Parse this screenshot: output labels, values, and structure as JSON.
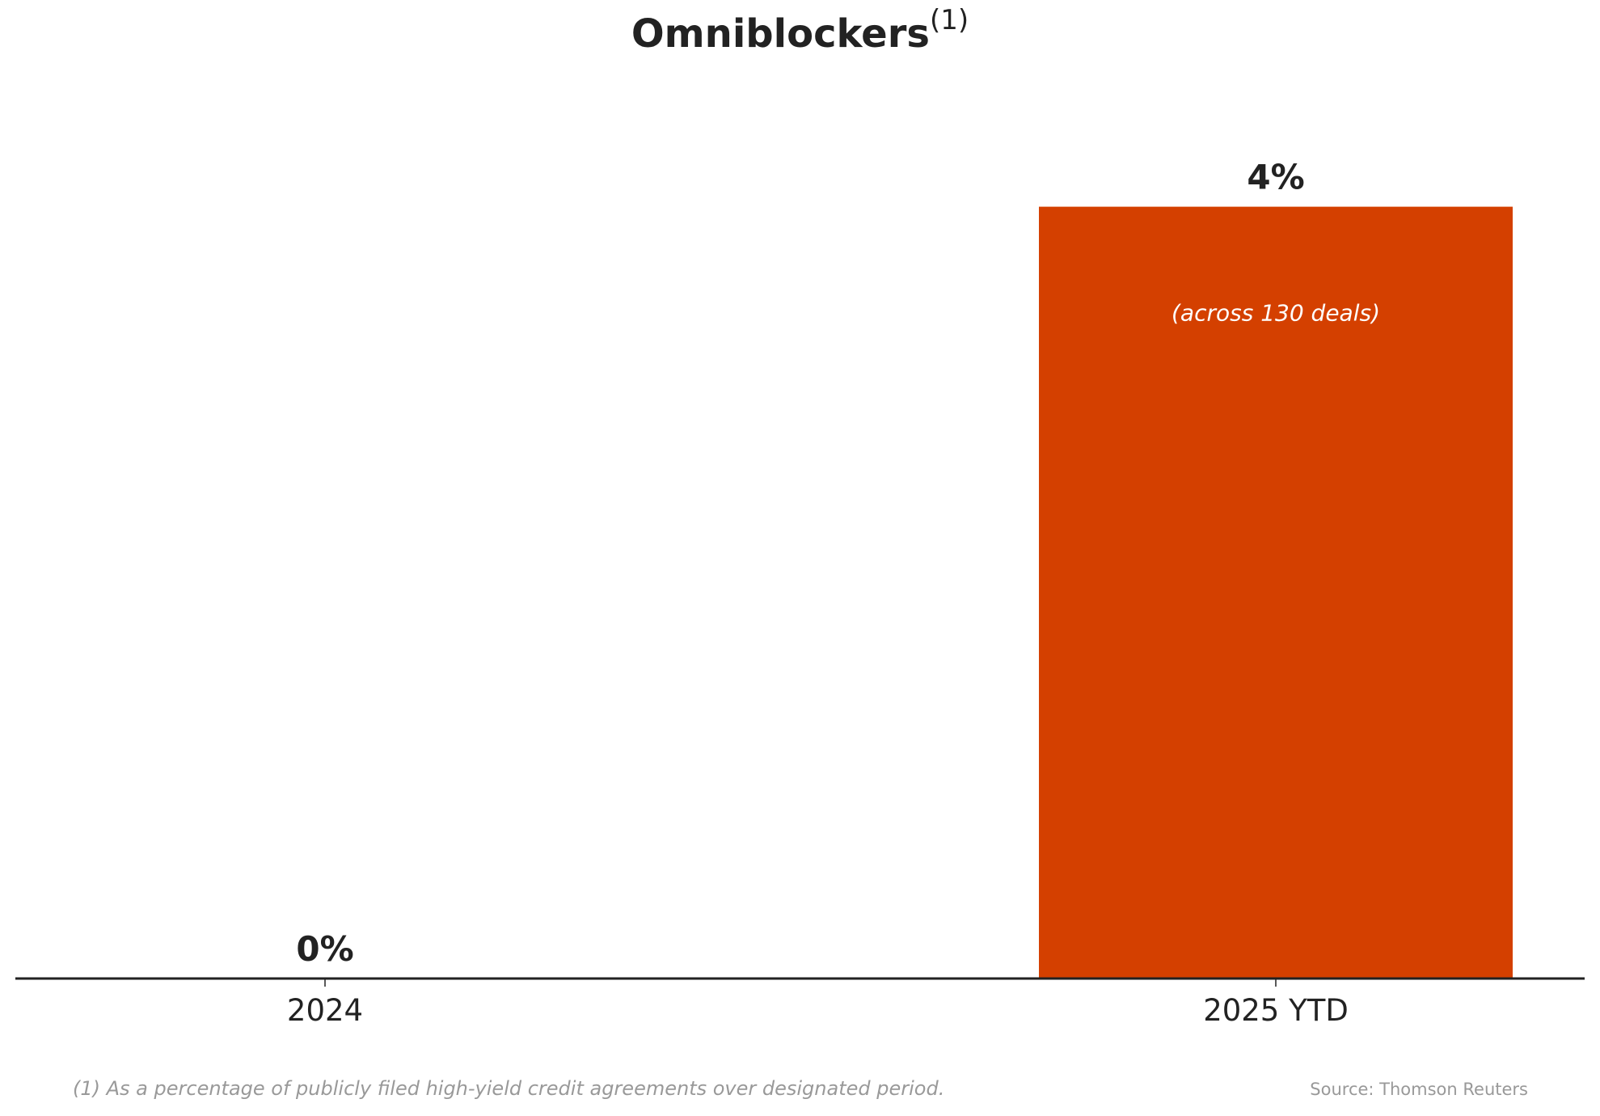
{
  "chart_data": {
    "type": "bar",
    "title": "Omniblockers",
    "title_superscript": "(1)",
    "categories": [
      "2024",
      "2025 YTD"
    ],
    "values": [
      0,
      4
    ],
    "value_labels": [
      "0%",
      "4%"
    ],
    "bar_annotations": [
      "",
      "(across 130 deals)"
    ],
    "ylim": [
      0,
      5
    ],
    "unit": "%",
    "grid": false,
    "bar_color": "#D44000",
    "footnote": "(1) As a percentage of publicly filed high-yield credit agreements over designated period.",
    "source": "Source: Thomson Reuters"
  }
}
